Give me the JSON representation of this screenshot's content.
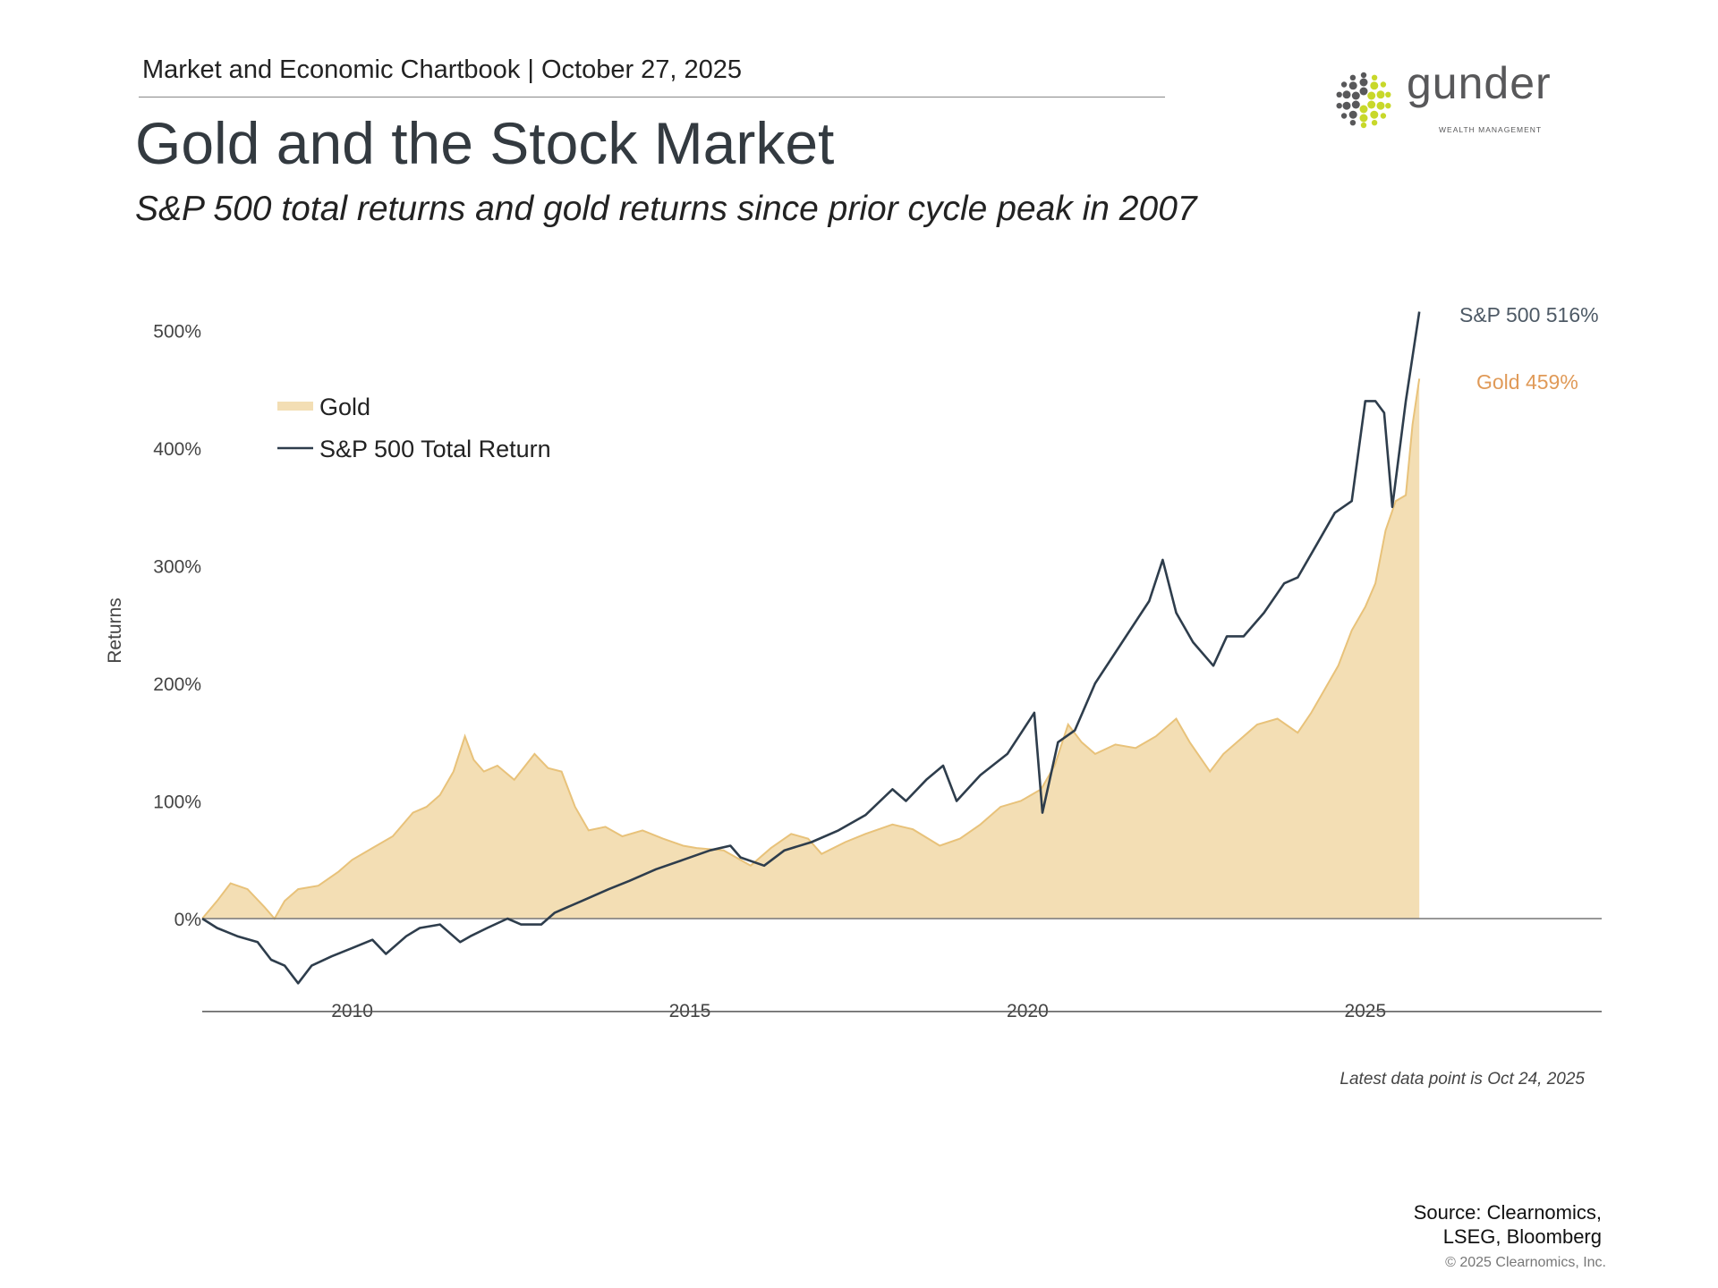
{
  "header": {
    "chartbook": "Market and Economic Chartbook | October 27, 2025",
    "title": "Gold and the Stock Market",
    "subtitle": "S&P 500 total returns and gold returns since prior cycle peak in 2007"
  },
  "logo": {
    "name": "gunder",
    "tagline": "WEALTH MANAGEMENT",
    "colors": {
      "gray": "#58585a",
      "lime": "#c8d82a"
    }
  },
  "footer": {
    "latest": "Latest data point is Oct 24, 2025",
    "source_line1": "Source: Clearnomics,",
    "source_line2": "LSEG, Bloomberg",
    "copyright": "© 2025 Clearnomics, Inc."
  },
  "chart_data": {
    "type": "area",
    "title": "Gold and the Stock Market",
    "ylabel": "Returns",
    "xlabel": "",
    "xlim": [
      2007.78,
      2028.5
    ],
    "ylim": [
      -60,
      520
    ],
    "x_ticks": [
      2010,
      2015,
      2020,
      2025
    ],
    "x_tick_labels": [
      "2010",
      "2015",
      "2020",
      "2025"
    ],
    "y_ticks": [
      0,
      100,
      200,
      300,
      400,
      500
    ],
    "y_tick_labels": [
      "0%",
      "100%",
      "200%",
      "300%",
      "400%",
      "500%"
    ],
    "grid": false,
    "legend": "upper-left",
    "series": [
      {
        "name": "Gold",
        "style": "area",
        "color": "#f3deb4",
        "line_color": "#e8c27a",
        "end_label": "Gold 459%",
        "end_label_color": "#e09a58",
        "x": [
          2007.78,
          2008.0,
          2008.2,
          2008.45,
          2008.7,
          2008.85,
          2009.0,
          2009.2,
          2009.5,
          2009.8,
          2010.0,
          2010.3,
          2010.6,
          2010.9,
          2011.1,
          2011.3,
          2011.5,
          2011.67,
          2011.8,
          2011.95,
          2012.15,
          2012.4,
          2012.7,
          2012.9,
          2013.1,
          2013.3,
          2013.5,
          2013.75,
          2014.0,
          2014.3,
          2014.6,
          2014.9,
          2015.1,
          2015.5,
          2015.9,
          2016.2,
          2016.5,
          2016.75,
          2016.95,
          2017.3,
          2017.6,
          2018.0,
          2018.3,
          2018.7,
          2019.0,
          2019.3,
          2019.6,
          2019.9,
          2020.2,
          2020.4,
          2020.6,
          2020.8,
          2021.0,
          2021.3,
          2021.6,
          2021.9,
          2022.2,
          2022.4,
          2022.7,
          2022.9,
          2023.1,
          2023.4,
          2023.7,
          2024.0,
          2024.2,
          2024.4,
          2024.6,
          2024.8,
          2025.0,
          2025.15,
          2025.3,
          2025.45,
          2025.6,
          2025.7,
          2025.8
        ],
        "y": [
          0,
          15,
          30,
          25,
          10,
          0,
          15,
          25,
          28,
          40,
          50,
          60,
          70,
          90,
          95,
          105,
          125,
          155,
          135,
          125,
          130,
          118,
          140,
          128,
          125,
          95,
          75,
          78,
          70,
          75,
          68,
          62,
          60,
          58,
          45,
          60,
          72,
          68,
          55,
          65,
          72,
          80,
          76,
          62,
          68,
          80,
          95,
          100,
          110,
          130,
          165,
          150,
          140,
          148,
          145,
          155,
          170,
          150,
          125,
          140,
          150,
          165,
          170,
          158,
          175,
          195,
          215,
          245,
          265,
          285,
          330,
          355,
          360,
          420,
          459
        ]
      },
      {
        "name": "S&P 500 Total Return",
        "style": "line",
        "color": "#2e3d4c",
        "end_label": "S&P 500 516%",
        "end_label_color": "#4e5a66",
        "x": [
          2007.78,
          2008.0,
          2008.3,
          2008.6,
          2008.8,
          2009.0,
          2009.2,
          2009.4,
          2009.7,
          2010.0,
          2010.3,
          2010.5,
          2010.8,
          2011.0,
          2011.3,
          2011.6,
          2011.75,
          2012.0,
          2012.3,
          2012.5,
          2012.8,
          2013.0,
          2013.4,
          2013.8,
          2014.1,
          2014.5,
          2014.9,
          2015.3,
          2015.6,
          2015.75,
          2016.1,
          2016.4,
          2016.8,
          2017.2,
          2017.6,
          2018.0,
          2018.2,
          2018.5,
          2018.75,
          2018.95,
          2019.3,
          2019.7,
          2020.1,
          2020.22,
          2020.45,
          2020.7,
          2021.0,
          2021.4,
          2021.8,
          2022.0,
          2022.2,
          2022.45,
          2022.75,
          2022.95,
          2023.2,
          2023.5,
          2023.8,
          2024.0,
          2024.3,
          2024.55,
          2024.8,
          2025.0,
          2025.15,
          2025.28,
          2025.4,
          2025.6,
          2025.8
        ],
        "y": [
          0,
          -8,
          -15,
          -20,
          -35,
          -40,
          -55,
          -40,
          -32,
          -25,
          -18,
          -30,
          -15,
          -8,
          -5,
          -20,
          -15,
          -8,
          0,
          -5,
          -5,
          5,
          15,
          25,
          32,
          42,
          50,
          58,
          62,
          52,
          45,
          58,
          65,
          75,
          88,
          110,
          100,
          118,
          130,
          100,
          122,
          140,
          175,
          90,
          150,
          160,
          200,
          235,
          270,
          305,
          260,
          235,
          215,
          240,
          240,
          260,
          285,
          290,
          320,
          345,
          355,
          440,
          440,
          430,
          350,
          440,
          516
        ]
      }
    ]
  }
}
